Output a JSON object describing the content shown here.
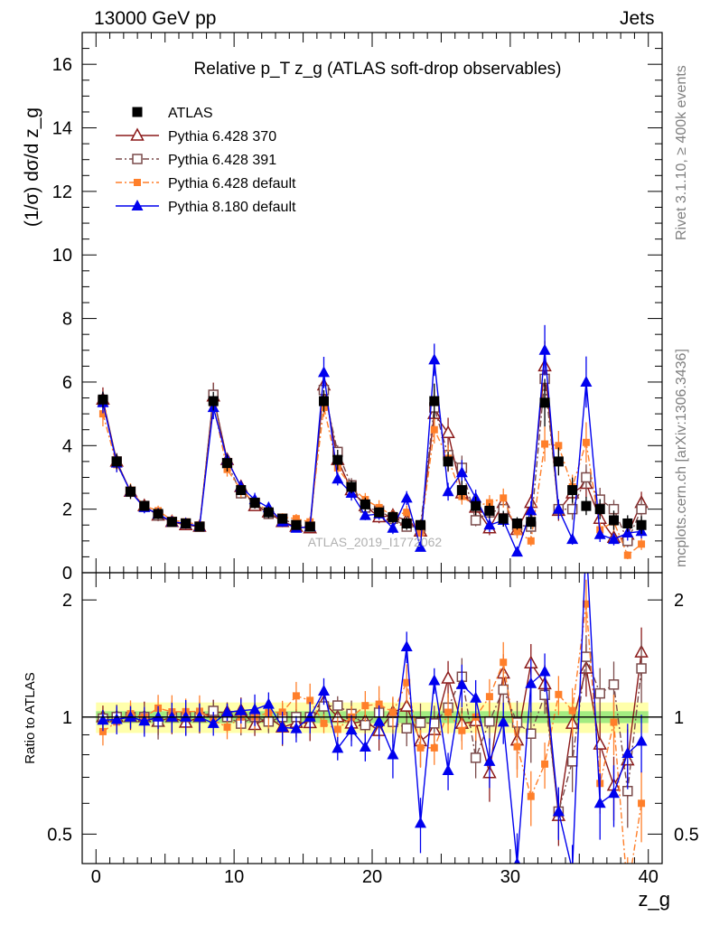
{
  "header": {
    "left": "13000 GeV pp",
    "right": "Jets",
    "side_top": "Rivet 3.1.10, ≥ 400k events",
    "side_bottom": "mcplots.cern.ch [arXiv:1306.3436]"
  },
  "chart_data": {
    "type": "scatter",
    "title": "Relative p_T z_g (ATLAS soft-drop observables)",
    "watermark": "ATLAS_2019_I1772062",
    "xlabel": "z_g",
    "ylabel": "(1/σ) dσ/d z_g",
    "ratio_ylabel": "Ratio to ATLAS",
    "xlim": [
      -1,
      41
    ],
    "ylim": [
      0,
      17
    ],
    "ratio_ylim": [
      0.42,
      2.35
    ],
    "ratio_log": true,
    "xticks": [
      "0",
      "10",
      "20",
      "30",
      "40"
    ],
    "yticks": [
      "0",
      "2",
      "4",
      "6",
      "8",
      "10",
      "12",
      "14",
      "16"
    ],
    "ratio_yticks": [
      "0.5",
      "1",
      "2"
    ],
    "legend_position": "top-left",
    "colors": {
      "atlas": "#000000",
      "p370": "#8b1a1a",
      "p391": "#7a4a4a",
      "p6def": "#ff7f2a",
      "p8": "#0000ee",
      "band_outer": "#ffff66",
      "band_inner": "#66dd66"
    },
    "x": [
      0.5,
      1.5,
      2.5,
      3.5,
      4.5,
      5.5,
      6.5,
      7.5,
      8.5,
      9.5,
      10.5,
      11.5,
      12.5,
      13.5,
      14.5,
      15.5,
      16.5,
      17.5,
      18.5,
      19.5,
      20.5,
      21.5,
      22.5,
      23.5,
      24.5,
      25.5,
      26.5,
      27.5,
      28.5,
      29.5,
      30.5,
      31.5,
      32.5,
      33.5,
      34.5,
      35.5,
      36.5,
      37.5,
      38.5,
      39.5
    ],
    "series": [
      {
        "name": "ATLAS",
        "key": "atlas",
        "marker": "square-filled",
        "line": "none",
        "values": [
          5.45,
          3.5,
          2.55,
          2.1,
          1.85,
          1.6,
          1.55,
          1.45,
          5.4,
          3.45,
          2.6,
          2.2,
          1.9,
          1.7,
          1.5,
          1.45,
          5.4,
          3.55,
          2.7,
          2.15,
          1.9,
          1.75,
          1.55,
          1.5,
          5.4,
          3.5,
          2.6,
          2.1,
          1.95,
          1.7,
          1.55,
          1.6,
          5.35,
          3.5,
          2.6,
          2.1,
          2.0,
          1.65,
          1.55,
          1.5
        ]
      },
      {
        "name": "Pythia 6.428 370",
        "key": "p370",
        "marker": "triangle-open",
        "line": "solid",
        "values": [
          5.45,
          3.5,
          2.55,
          2.1,
          1.8,
          1.6,
          1.5,
          1.45,
          5.55,
          3.55,
          2.7,
          2.1,
          1.9,
          1.6,
          1.45,
          1.4,
          5.9,
          3.55,
          2.6,
          2.1,
          1.75,
          1.8,
          1.65,
          1.3,
          5.0,
          4.4,
          2.5,
          2.05,
          1.4,
          2.2,
          1.35,
          2.2,
          6.5,
          1.95,
          2.5,
          2.8,
          1.7,
          1.1,
          1.2,
          2.2
        ]
      },
      {
        "name": "Pythia 6.428 391",
        "key": "p391",
        "marker": "square-open",
        "line": "dash-dot",
        "values": [
          5.4,
          3.5,
          2.55,
          2.1,
          1.8,
          1.6,
          1.55,
          1.45,
          5.6,
          3.45,
          2.5,
          2.2,
          1.85,
          1.7,
          1.5,
          1.45,
          5.75,
          3.8,
          2.75,
          2.05,
          1.95,
          1.7,
          1.45,
          1.45,
          5.2,
          3.7,
          3.3,
          1.65,
          1.9,
          2.0,
          1.5,
          1.45,
          6.1,
          2.0,
          2.0,
          3.0,
          2.3,
          2.0,
          1.0,
          2.0
        ]
      },
      {
        "name": "Pythia 6.428 default",
        "key": "p6def",
        "marker": "square-filled-small",
        "line": "dash-dot",
        "values": [
          5.0,
          3.4,
          2.6,
          2.1,
          1.95,
          1.65,
          1.6,
          1.5,
          5.3,
          3.25,
          2.6,
          2.2,
          1.95,
          1.75,
          1.7,
          1.6,
          5.2,
          3.3,
          2.7,
          2.3,
          2.05,
          1.8,
          1.9,
          1.25,
          4.5,
          3.6,
          2.4,
          2.1,
          2.2,
          2.35,
          1.3,
          1.0,
          4.05,
          4.0,
          2.7,
          4.1,
          1.35,
          1.6,
          0.55,
          0.9
        ]
      },
      {
        "name": "Pythia 8.180 default",
        "key": "p8",
        "marker": "triangle-filled",
        "line": "solid",
        "values": [
          5.35,
          3.45,
          2.55,
          2.05,
          1.85,
          1.6,
          1.55,
          1.45,
          5.2,
          3.55,
          2.7,
          2.3,
          2.05,
          1.6,
          1.4,
          1.45,
          6.3,
          2.95,
          2.5,
          1.8,
          1.85,
          1.4,
          2.35,
          0.8,
          6.7,
          2.55,
          3.15,
          2.35,
          1.5,
          1.65,
          0.65,
          1.95,
          7.0,
          2.0,
          1.05,
          6.0,
          1.2,
          1.05,
          1.25,
          1.3
        ]
      }
    ]
  }
}
